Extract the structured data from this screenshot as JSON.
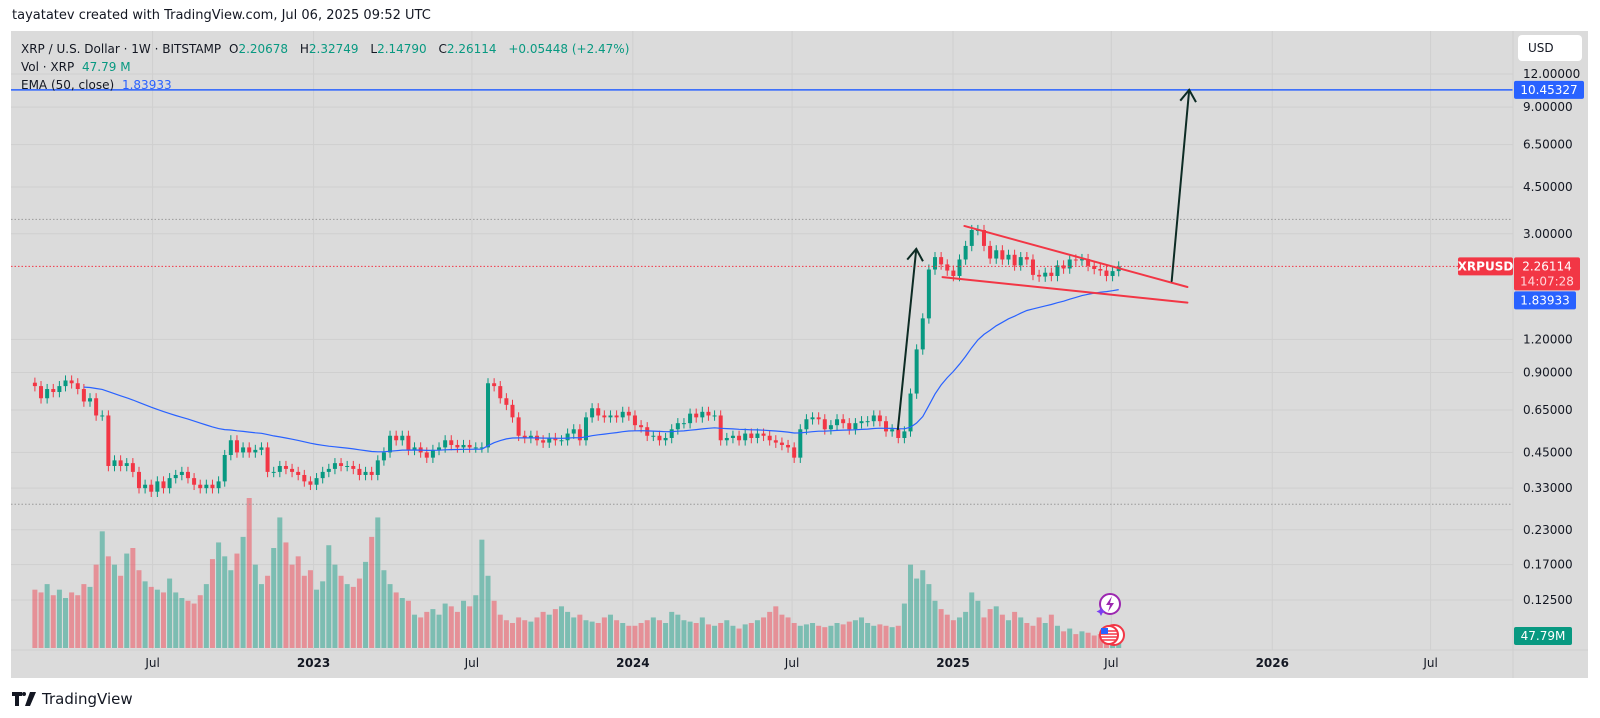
{
  "caption": "tayatatev created with TradingView.com, Jul 06, 2025 09:52 UTC",
  "legend": {
    "symbol": "XRP / U.S. Dollar · 1W · BITSTAMP",
    "open_label": "O",
    "open": "2.20678",
    "high_label": "H",
    "high": "2.32749",
    "low_label": "L",
    "low": "2.14790",
    "close_label": "C",
    "close": "2.26114",
    "change": "+0.05448 (+2.47%)",
    "vol_label": "Vol · XRP",
    "vol_value": "47.79 M",
    "ema_label": "EMA (50, close)",
    "ema_value": "1.83933"
  },
  "currency_button": "USD",
  "footer_brand": "TradingView",
  "colors": {
    "up": "#089981",
    "down": "#f23645",
    "ema": "#2962ff",
    "target_line": "#2962ff",
    "pennant": "#f23645",
    "arrow": "#0d2b24",
    "background": "#dbdbdb"
  },
  "chart_data": {
    "type": "candlestick",
    "symbol": "XRPUSD",
    "interval": "1W",
    "y_scale": "log",
    "ylim": [
      0.11,
      13
    ],
    "first_candle_date": "2022-02-21",
    "price_ticks": [
      "12.00000",
      "9.00000",
      "6.50000",
      "4.50000",
      "3.00000",
      "1.20000",
      "0.90000",
      "0.65000",
      "0.45000",
      "0.33000",
      "0.23000",
      "0.17000",
      "0.12500"
    ],
    "time_ticks": [
      {
        "label": "Jul",
        "date": "2022-07-01",
        "bold": false
      },
      {
        "label": "2023",
        "date": "2023-01-01",
        "bold": true
      },
      {
        "label": "Jul",
        "date": "2023-07-01",
        "bold": false
      },
      {
        "label": "2024",
        "date": "2024-01-01",
        "bold": true
      },
      {
        "label": "Jul",
        "date": "2024-07-01",
        "bold": false
      },
      {
        "label": "2025",
        "date": "2025-01-01",
        "bold": true
      },
      {
        "label": "Jul",
        "date": "2025-07-01",
        "bold": false
      },
      {
        "label": "2026",
        "date": "2026-01-01",
        "bold": true
      },
      {
        "label": "Jul",
        "date": "2026-07-01",
        "bold": false
      }
    ],
    "close": [
      0.8,
      0.72,
      0.78,
      0.76,
      0.8,
      0.84,
      0.82,
      0.78,
      0.7,
      0.72,
      0.62,
      0.62,
      0.4,
      0.42,
      0.4,
      0.41,
      0.38,
      0.33,
      0.34,
      0.32,
      0.35,
      0.33,
      0.36,
      0.37,
      0.38,
      0.36,
      0.34,
      0.33,
      0.34,
      0.33,
      0.35,
      0.44,
      0.5,
      0.45,
      0.47,
      0.45,
      0.46,
      0.47,
      0.38,
      0.38,
      0.4,
      0.39,
      0.38,
      0.37,
      0.35,
      0.34,
      0.36,
      0.38,
      0.39,
      0.41,
      0.4,
      0.4,
      0.39,
      0.37,
      0.38,
      0.37,
      0.42,
      0.45,
      0.52,
      0.5,
      0.52,
      0.46,
      0.47,
      0.45,
      0.43,
      0.46,
      0.47,
      0.5,
      0.48,
      0.47,
      0.48,
      0.47,
      0.47,
      0.47,
      0.82,
      0.8,
      0.72,
      0.68,
      0.61,
      0.52,
      0.51,
      0.52,
      0.5,
      0.49,
      0.51,
      0.5,
      0.5,
      0.53,
      0.55,
      0.5,
      0.61,
      0.66,
      0.62,
      0.61,
      0.62,
      0.61,
      0.64,
      0.62,
      0.57,
      0.56,
      0.52,
      0.52,
      0.5,
      0.51,
      0.55,
      0.58,
      0.58,
      0.63,
      0.61,
      0.64,
      0.62,
      0.62,
      0.5,
      0.51,
      0.52,
      0.5,
      0.53,
      0.51,
      0.53,
      0.52,
      0.5,
      0.49,
      0.48,
      0.47,
      0.43,
      0.55,
      0.6,
      0.61,
      0.6,
      0.55,
      0.57,
      0.6,
      0.58,
      0.55,
      0.58,
      0.59,
      0.59,
      0.62,
      0.59,
      0.54,
      0.55,
      0.51,
      0.54,
      0.75,
      1.1,
      1.44,
      2.2,
      2.45,
      2.3,
      2.18,
      2.08,
      2.4,
      2.7,
      3.1,
      3.1,
      2.7,
      2.42,
      2.6,
      2.4,
      2.5,
      2.28,
      2.45,
      2.4,
      2.1,
      2.07,
      2.14,
      2.08,
      2.28,
      2.22,
      2.4,
      2.38,
      2.41,
      2.27,
      2.21,
      2.18,
      2.08,
      2.17,
      2.26
    ],
    "volume_millions": [
      210,
      200,
      230,
      190,
      210,
      180,
      200,
      190,
      230,
      220,
      300,
      420,
      330,
      300,
      260,
      340,
      360,
      280,
      240,
      220,
      210,
      200,
      250,
      200,
      180,
      170,
      160,
      190,
      230,
      320,
      380,
      330,
      280,
      340,
      400,
      540,
      300,
      230,
      260,
      360,
      470,
      380,
      300,
      330,
      260,
      280,
      210,
      240,
      370,
      300,
      260,
      230,
      220,
      250,
      310,
      400,
      470,
      280,
      230,
      200,
      180,
      170,
      120,
      110,
      130,
      140,
      120,
      160,
      150,
      130,
      170,
      150,
      190,
      390,
      260,
      170,
      120,
      100,
      90,
      110,
      100,
      95,
      110,
      130,
      120,
      140,
      150,
      130,
      110,
      120,
      100,
      95,
      90,
      110,
      120,
      100,
      90,
      80,
      80,
      90,
      100,
      110,
      100,
      90,
      130,
      120,
      100,
      95,
      90,
      110,
      85,
      80,
      90,
      100,
      80,
      70,
      85,
      90,
      100,
      110,
      130,
      150,
      120,
      110,
      90,
      80,
      85,
      90,
      80,
      75,
      80,
      90,
      85,
      95,
      100,
      110,
      90,
      80,
      85,
      80,
      75,
      80,
      160,
      300,
      250,
      280,
      230,
      170,
      140,
      120,
      100,
      110,
      130,
      200,
      170,
      110,
      140,
      150,
      120,
      100,
      130,
      110,
      90,
      80,
      110,
      90,
      120,
      80,
      60,
      70,
      50,
      60,
      55,
      45,
      50,
      45,
      55,
      48
    ],
    "ema_period": 50,
    "price_labels": {
      "target": "10.45327",
      "last_price": "2.26114",
      "countdown": "14:07:28",
      "ema": "1.83933",
      "volume": "47.79M",
      "symbol_tag": "XRPUSD"
    },
    "horizontal_lines": [
      {
        "price": 10.45327,
        "style": "solid",
        "color": "#2962ff"
      },
      {
        "price": 3.4,
        "style": "dotted",
        "color": "#9a9a9a"
      },
      {
        "price": 0.2871,
        "style": "dotted",
        "color": "#9a9a9a"
      },
      {
        "price": 2.26114,
        "style": "dotted",
        "color": "#f23645"
      }
    ],
    "drawings": [
      {
        "name": "pennant-upper-line",
        "from": [
          "2025-01-14",
          3.21
        ],
        "to": [
          "2025-09-26",
          1.89
        ],
        "color": "#f23645"
      },
      {
        "name": "pennant-lower-line",
        "from": [
          "2024-12-20",
          2.06
        ],
        "to": [
          "2025-09-26",
          1.65
        ],
        "color": "#f23645"
      },
      {
        "name": "flagpole-arrow",
        "from": [
          "2024-10-30",
          0.55
        ],
        "to": [
          "2024-11-20",
          2.63
        ],
        "color": "#0d2b24",
        "arrow": true
      },
      {
        "name": "target-arrow",
        "from": [
          "2025-09-08",
          1.99
        ],
        "to": [
          "2025-09-28",
          10.45327
        ],
        "color": "#0d2b24",
        "arrow": true
      }
    ]
  }
}
